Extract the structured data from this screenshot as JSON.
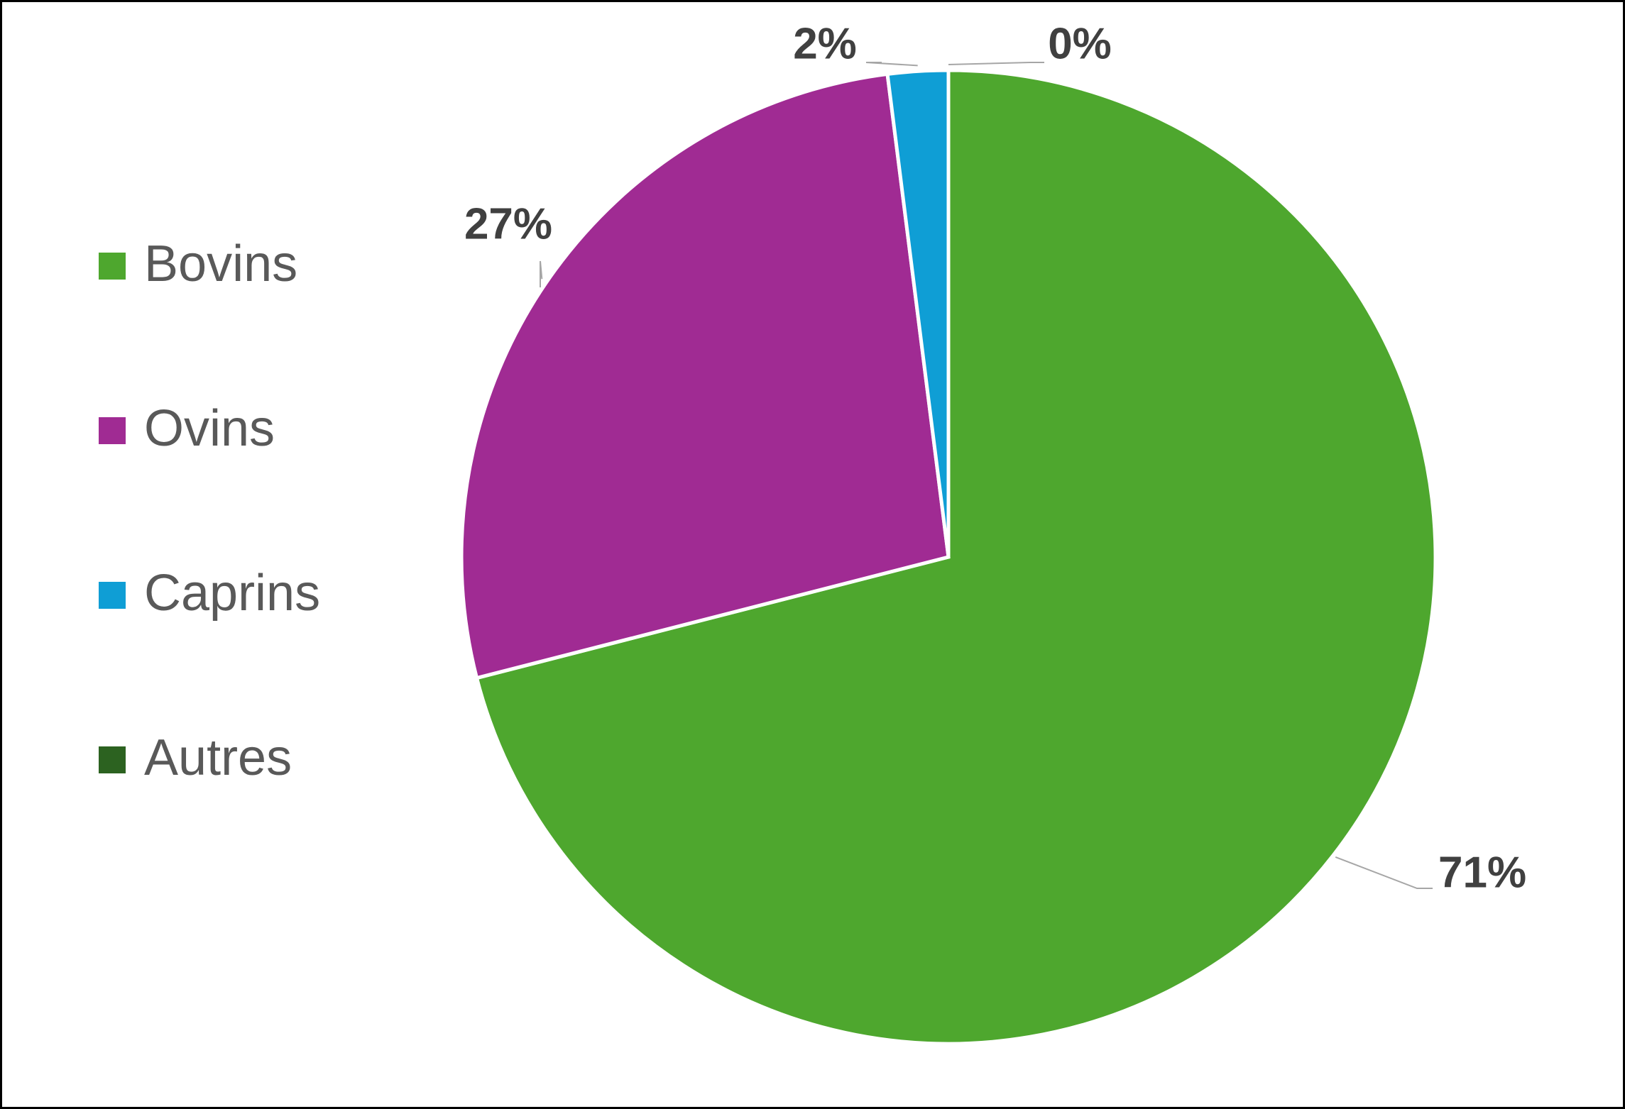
{
  "chart_data": {
    "type": "pie",
    "categories": [
      "Bovins",
      "Ovins",
      "Caprins",
      "Autres"
    ],
    "values": [
      71,
      27,
      2,
      0
    ],
    "value_labels": [
      "71%",
      "27%",
      "2%",
      "0%"
    ],
    "colors": [
      "#4ea72e",
      "#a02b93",
      "#0f9ed5",
      "#2c6220"
    ],
    "legend": "left"
  }
}
